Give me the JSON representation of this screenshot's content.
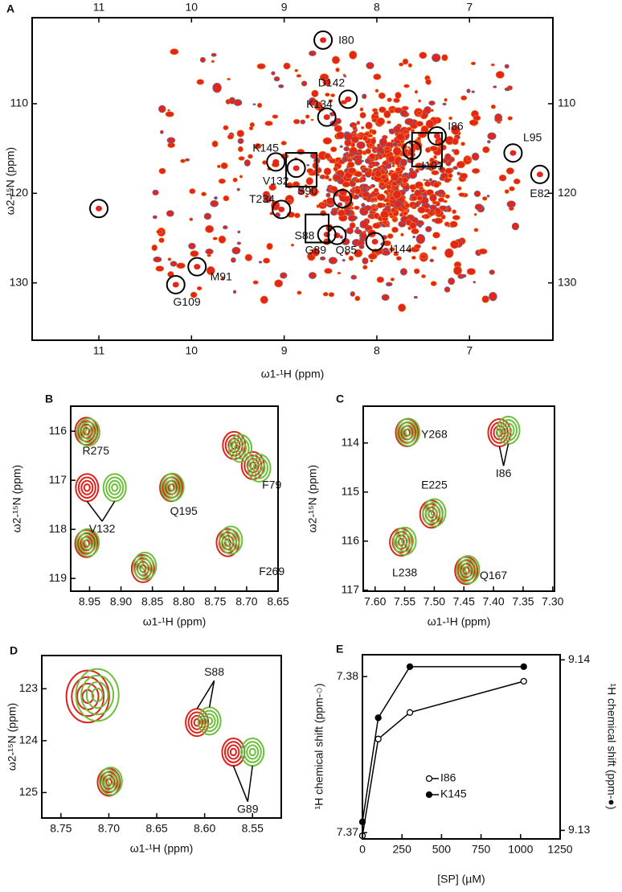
{
  "chart_data": [
    {
      "type": "contour",
      "title": "A",
      "xlabel": "ω1-¹H (ppm)",
      "ylabel": "ω2-¹⁵N (ppm)",
      "xlim": [
        11.72,
        6.1
      ],
      "ylim": [
        136.4,
        100.4
      ],
      "xticks": [
        11,
        10,
        9,
        8,
        7
      ],
      "yticks": [
        110,
        120,
        130
      ],
      "circles": {
        "x": [
          8.58,
          8.31,
          8.54,
          9.09,
          8.87,
          9.03,
          8.37,
          8.54,
          8.43,
          8.02,
          9.94,
          10.17,
          11.0,
          7.35,
          7.62,
          6.53,
          6.24
        ],
        "y": [
          102.9,
          109.5,
          111.5,
          116.5,
          117.2,
          121.8,
          120.6,
          124.6,
          124.7,
          125.4,
          128.2,
          130.2,
          121.7,
          113.6,
          115.2,
          115.5,
          117.9
        ]
      },
      "annotations": [
        {
          "text": "I80",
          "x": 8.33,
          "y": 103.0
        },
        {
          "text": "D142",
          "x": 8.49,
          "y": 107.75
        },
        {
          "text": "K134",
          "x": 8.62,
          "y": 110.1
        },
        {
          "text": "K145",
          "x": 9.2,
          "y": 115.0
        },
        {
          "text": "V132",
          "x": 9.09,
          "y": 118.7
        },
        {
          "text": "T234",
          "x": 9.24,
          "y": 120.7
        },
        {
          "text": "S90",
          "x": 8.75,
          "y": 119.8
        },
        {
          "text": "S88",
          "x": 8.78,
          "y": 124.8
        },
        {
          "text": "G89",
          "x": 8.66,
          "y": 126.4
        },
        {
          "text": "Q85",
          "x": 8.33,
          "y": 126.4
        },
        {
          "text": "I144",
          "x": 7.74,
          "y": 126.3
        },
        {
          "text": "M91",
          "x": 9.68,
          "y": 129.4
        },
        {
          "text": "G109",
          "x": 10.05,
          "y": 132.2
        },
        {
          "text": "I86",
          "x": 7.15,
          "y": 112.6
        },
        {
          "text": "I101",
          "x": 7.4,
          "y": 117.0
        },
        {
          "text": "L95",
          "x": 6.32,
          "y": 113.85
        },
        {
          "text": "E82",
          "x": 6.24,
          "y": 120.1
        }
      ]
    },
    {
      "type": "contour",
      "title": "B",
      "xlabel": "ω1-¹H (ppm)",
      "ylabel": "ω2-¹⁵N (ppm)",
      "xlim": [
        8.98,
        8.65
      ],
      "ylim": [
        119.26,
        115.49
      ],
      "xticks": [
        8.95,
        {
          "value": 8.9,
          "label": "8.90"
        },
        8.85,
        {
          "value": 8.8,
          "label": "8.80"
        },
        8.75,
        {
          "value": 8.7,
          "label": "8.70"
        },
        8.65
      ],
      "yticks": [
        116,
        117,
        118,
        119
      ],
      "series": [
        {
          "color": "#e0201b",
          "x": [
            8.955,
            8.954,
            8.82,
            8.72,
            8.69,
            8.73,
            8.955,
            8.865
          ],
          "y": [
            116.0,
            117.15,
            117.15,
            116.29,
            116.7,
            118.27,
            118.29,
            118.8
          ]
        },
        {
          "color": "#6cbf3a",
          "x": [
            8.952,
            8.91,
            8.818,
            8.71,
            8.68,
            8.725,
            8.953,
            8.862
          ],
          "y": [
            116.02,
            117.15,
            117.14,
            116.35,
            116.75,
            118.22,
            118.27,
            118.75
          ]
        }
      ],
      "annotations": [
        {
          "text": "R275",
          "x": 8.94,
          "y": 116.41
        },
        {
          "text": "V132",
          "x": 8.93,
          "y": 118.0,
          "arrows_to": [
            [
              8.954,
              117.15
            ],
            [
              8.91,
              117.15
            ]
          ]
        },
        {
          "text": "Q195",
          "x": 8.8,
          "y": 117.64
        },
        {
          "text": "F79",
          "x": 8.66,
          "y": 117.11
        },
        {
          "text": "F269",
          "x": 8.66,
          "y": 118.87
        }
      ]
    },
    {
      "type": "contour",
      "title": "C",
      "xlabel": "ω1-¹H (ppm)",
      "ylabel": "ω2-¹⁵N (ppm)",
      "xlim": [
        7.62,
        7.297
      ],
      "ylim": [
        117.02,
        113.25
      ],
      "xticks": [
        {
          "value": 7.6,
          "label": "7.60"
        },
        7.55,
        {
          "value": 7.5,
          "label": "7.50"
        },
        7.45,
        {
          "value": 7.4,
          "label": "7.40"
        },
        7.35,
        {
          "value": 7.3,
          "label": "7.30"
        }
      ],
      "yticks": [
        114,
        115,
        116,
        117
      ],
      "series": [
        {
          "color": "#e0201b",
          "x": [
            7.546,
            7.39,
            7.505,
            7.556,
            7.446
          ],
          "y": [
            113.79,
            113.79,
            115.45,
            116.02,
            116.6
          ]
        },
        {
          "color": "#6cbf3a",
          "x": [
            7.544,
            7.375,
            7.5,
            7.55,
            7.443
          ],
          "y": [
            113.78,
            113.74,
            115.42,
            116.0,
            116.58
          ]
        }
      ],
      "annotations": [
        {
          "text": "Y268",
          "x": 7.5,
          "y": 113.84
        },
        {
          "text": "I86",
          "x": 7.383,
          "y": 114.63,
          "arrows_to": [
            [
              7.39,
              113.79
            ],
            [
              7.375,
              113.74
            ]
          ]
        },
        {
          "text": "E225",
          "x": 7.5,
          "y": 114.87
        },
        {
          "text": "L238",
          "x": 7.55,
          "y": 116.66
        },
        {
          "text": "Q167",
          "x": 7.4,
          "y": 116.71
        }
      ]
    },
    {
      "type": "contour",
      "title": "D",
      "xlabel": "ω1-¹H (ppm)",
      "ylabel": "ω2-¹⁵N (ppm)",
      "xlim": [
        8.77,
        8.52
      ],
      "ylim": [
        125.49,
        122.36
      ],
      "xticks": [
        8.75,
        {
          "value": 8.7,
          "label": "8.70"
        },
        8.65,
        {
          "value": 8.6,
          "label": "8.60"
        },
        8.55
      ],
      "yticks": [
        123,
        124,
        125
      ],
      "series": [
        {
          "color": "#e0201b",
          "x": [
            8.722,
            8.608,
            8.57,
            8.7
          ],
          "y": [
            123.15,
            123.65,
            124.22,
            124.8
          ]
        },
        {
          "color": "#6cbf3a",
          "x": [
            8.712,
            8.595,
            8.55,
            8.698
          ],
          "y": [
            123.12,
            123.62,
            124.22,
            124.78
          ]
        }
      ],
      "annotations": [
        {
          "text": "S88",
          "x": 8.59,
          "y": 122.69,
          "arrows_to": [
            [
              8.608,
              123.65
            ],
            [
              8.595,
              123.62
            ]
          ]
        },
        {
          "text": "G89",
          "x": 8.555,
          "y": 125.33,
          "arrows_to": [
            [
              8.57,
              124.22
            ],
            [
              8.55,
              124.22
            ]
          ]
        }
      ]
    },
    {
      "type": "line",
      "title": "E",
      "xlabel": "[SP] (µM)",
      "ylabel": "¹H chemical shift (ppm-○)",
      "y2label": "¹H chemical shift (ppm-●)",
      "xlim": [
        0,
        1250
      ],
      "xticks": [
        0,
        250,
        500,
        750,
        1000,
        1250
      ],
      "ylim": [
        7.3696,
        7.3814
      ],
      "yticks": [
        7.37,
        7.38
      ],
      "y2lim": [
        9.1295,
        9.1403
      ],
      "y2ticks": [
        9.13,
        9.14
      ],
      "x": [
        0,
        100,
        300,
        1020
      ],
      "legend": "lower center",
      "series": [
        {
          "name": "I86",
          "color": "#000000",
          "marker": "open",
          "values": [
            7.3698,
            7.376,
            7.3777,
            7.3797
          ]
        },
        {
          "name": "K145",
          "color": "#000000",
          "marker": "filled",
          "axis": "y2",
          "values": [
            9.1305,
            9.1366,
            9.1396,
            9.1396
          ]
        }
      ]
    }
  ]
}
